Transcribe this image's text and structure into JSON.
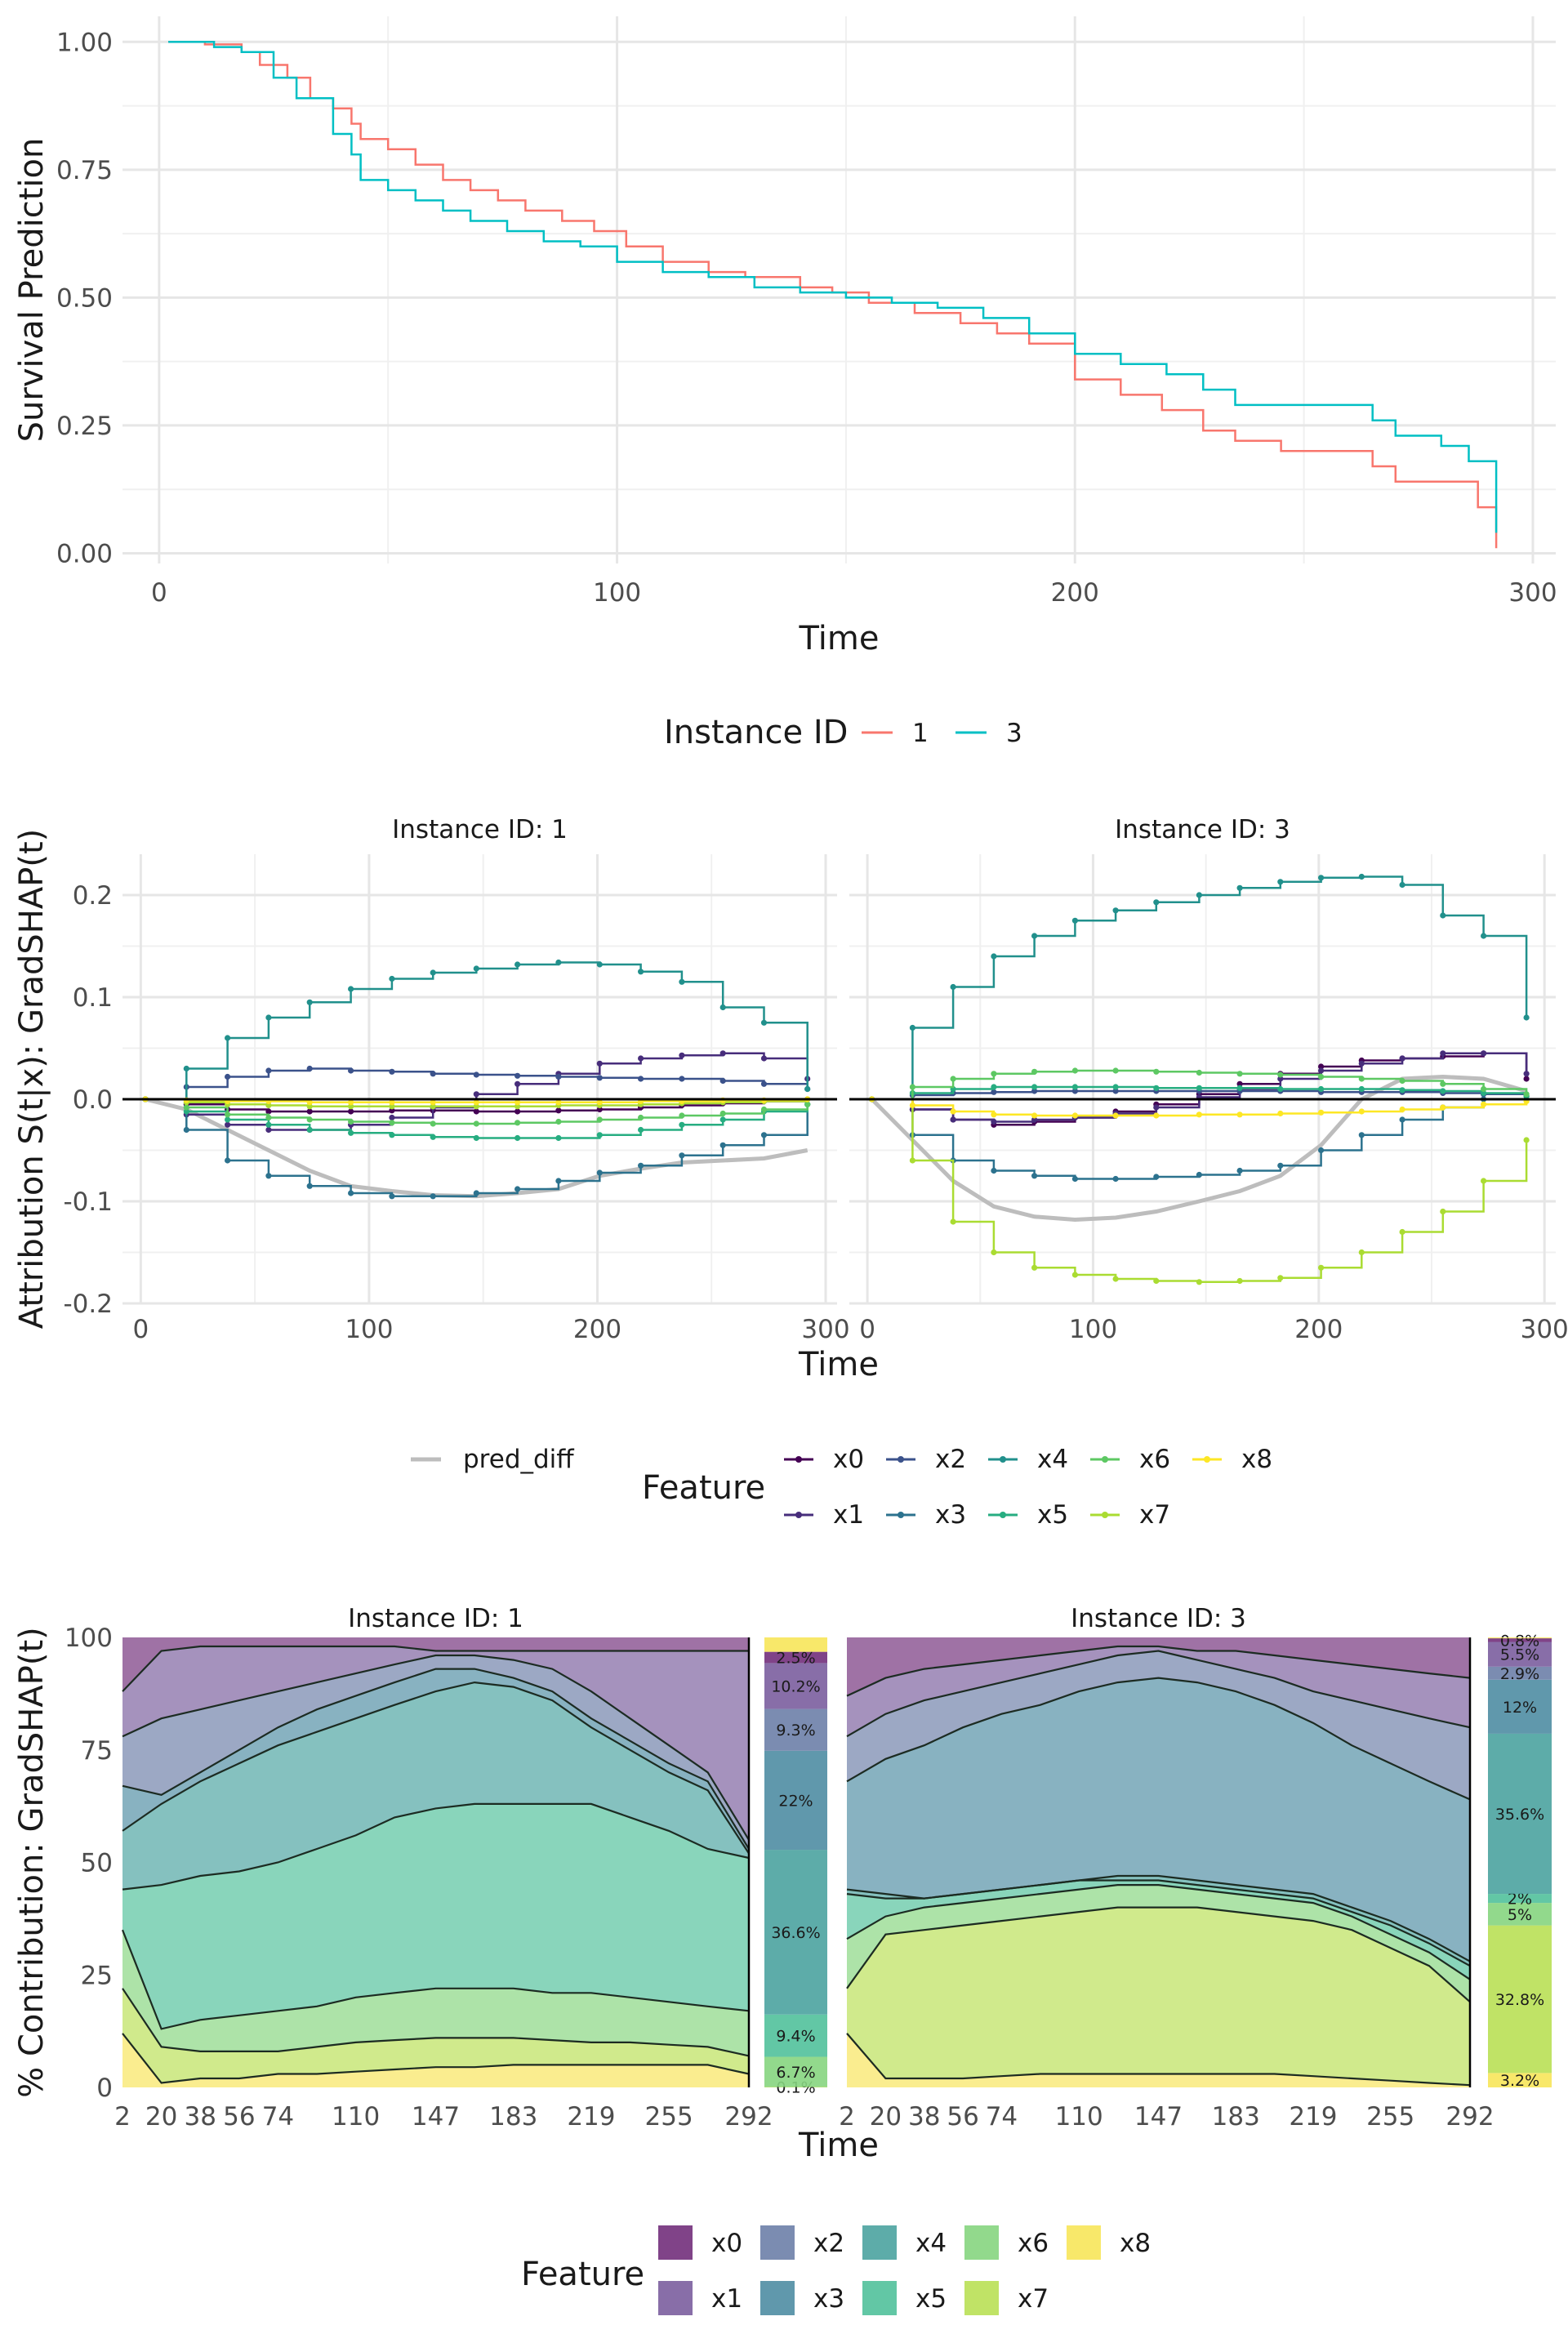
{
  "chart_data": [
    {
      "type": "line",
      "xlabel": "Time",
      "ylabel": "Survival Prediction",
      "xlim": [
        -8,
        305
      ],
      "ylim": [
        -0.02,
        1.05
      ],
      "xticks": [
        0,
        100,
        200,
        300
      ],
      "yticks": [
        0.0,
        0.25,
        0.5,
        0.75,
        1.0
      ],
      "ytick_labels": [
        "0.00",
        "0.25",
        "0.50",
        "0.75",
        "1.00"
      ],
      "grid": true,
      "legend": {
        "title": "Instance ID",
        "placement": "bottom"
      },
      "series": [
        {
          "name": "1",
          "color": "#F8766D",
          "x": [
            2,
            10,
            18,
            22,
            28,
            33,
            38,
            42,
            44,
            50,
            56,
            62,
            68,
            74,
            80,
            88,
            95,
            102,
            110,
            120,
            128,
            140,
            147,
            155,
            165,
            175,
            183,
            190,
            200,
            210,
            219,
            228,
            235,
            245,
            255,
            265,
            270,
            280,
            288,
            292
          ],
          "y": [
            1.0,
            0.995,
            0.98,
            0.955,
            0.93,
            0.89,
            0.87,
            0.84,
            0.81,
            0.79,
            0.76,
            0.73,
            0.71,
            0.69,
            0.67,
            0.65,
            0.63,
            0.6,
            0.57,
            0.55,
            0.54,
            0.52,
            0.51,
            0.49,
            0.47,
            0.45,
            0.43,
            0.41,
            0.34,
            0.31,
            0.28,
            0.24,
            0.22,
            0.2,
            0.2,
            0.17,
            0.14,
            0.14,
            0.09,
            0.01
          ]
        },
        {
          "name": "3",
          "color": "#00BFC4",
          "x": [
            2,
            12,
            18,
            25,
            30,
            38,
            42,
            44,
            50,
            56,
            62,
            68,
            76,
            84,
            92,
            100,
            110,
            120,
            130,
            140,
            150,
            160,
            170,
            180,
            190,
            200,
            210,
            220,
            228,
            235,
            245,
            255,
            265,
            270,
            280,
            286,
            292
          ],
          "y": [
            1.0,
            0.99,
            0.98,
            0.93,
            0.89,
            0.82,
            0.78,
            0.73,
            0.71,
            0.69,
            0.67,
            0.65,
            0.63,
            0.61,
            0.6,
            0.57,
            0.55,
            0.54,
            0.52,
            0.51,
            0.5,
            0.49,
            0.48,
            0.46,
            0.43,
            0.39,
            0.37,
            0.35,
            0.32,
            0.29,
            0.29,
            0.29,
            0.26,
            0.23,
            0.21,
            0.18,
            0.04
          ]
        }
      ]
    },
    {
      "type": "line",
      "xlabel": "Time",
      "ylabel": "Attribution S(t|x): GradSHAP(t)",
      "xlim": [
        -8,
        305
      ],
      "ylim": [
        -0.2,
        0.24
      ],
      "xticks": [
        0,
        100,
        200,
        300
      ],
      "yticks": [
        -0.2,
        -0.1,
        0.0,
        0.1,
        0.2
      ],
      "grid": true,
      "facets": [
        "Instance ID: 1",
        "Instance ID: 3"
      ],
      "legend": {
        "title": "Feature",
        "placement": "bottom"
      },
      "colors": {
        "pred_diff": "#BDBDBD",
        "x0": "#440154",
        "x1": "#472D7B",
        "x2": "#3B528B",
        "x3": "#2C728E",
        "x4": "#21908C",
        "x5": "#27AD81",
        "x6": "#5DC863",
        "x7": "#AADC32",
        "x8": "#FDE725"
      },
      "x": [
        2,
        20,
        38,
        56,
        74,
        92,
        110,
        128,
        147,
        165,
        183,
        201,
        219,
        237,
        255,
        273,
        292
      ],
      "instance_1": {
        "pred_diff": [
          0,
          -0.01,
          -0.03,
          -0.05,
          -0.07,
          -0.085,
          -0.09,
          -0.094,
          -0.095,
          -0.092,
          -0.088,
          -0.075,
          -0.068,
          -0.062,
          -0.06,
          -0.058,
          -0.05
        ],
        "x0": [
          0,
          -0.005,
          -0.01,
          -0.012,
          -0.012,
          -0.012,
          -0.011,
          -0.011,
          -0.012,
          -0.012,
          -0.011,
          -0.01,
          -0.008,
          -0.006,
          -0.004,
          -0.002,
          0
        ],
        "x1": [
          0,
          -0.015,
          -0.025,
          -0.03,
          -0.03,
          -0.025,
          -0.018,
          -0.008,
          0.005,
          0.015,
          0.025,
          0.035,
          0.04,
          0.043,
          0.045,
          0.04,
          0.02
        ],
        "x2": [
          0,
          0.012,
          0.022,
          0.028,
          0.03,
          0.028,
          0.027,
          0.025,
          0.024,
          0.023,
          0.022,
          0.021,
          0.02,
          0.02,
          0.018,
          0.015,
          0.01
        ],
        "x3": [
          0,
          -0.03,
          -0.06,
          -0.075,
          -0.085,
          -0.092,
          -0.095,
          -0.095,
          -0.092,
          -0.088,
          -0.08,
          -0.072,
          -0.065,
          -0.055,
          -0.045,
          -0.035,
          -0.005
        ],
        "x4": [
          0,
          0.03,
          0.06,
          0.08,
          0.095,
          0.108,
          0.118,
          0.124,
          0.128,
          0.132,
          0.134,
          0.132,
          0.125,
          0.115,
          0.09,
          0.075,
          0.01
        ],
        "x5": [
          0,
          -0.012,
          -0.02,
          -0.025,
          -0.03,
          -0.033,
          -0.035,
          -0.037,
          -0.038,
          -0.038,
          -0.038,
          -0.035,
          -0.03,
          -0.025,
          -0.02,
          -0.012,
          -0.005
        ],
        "x6": [
          0,
          -0.008,
          -0.015,
          -0.018,
          -0.02,
          -0.022,
          -0.023,
          -0.024,
          -0.024,
          -0.023,
          -0.022,
          -0.02,
          -0.018,
          -0.016,
          -0.014,
          -0.01,
          -0.005
        ],
        "x7": [
          0,
          -0.003,
          -0.005,
          -0.006,
          -0.007,
          -0.007,
          -0.007,
          -0.007,
          -0.007,
          -0.007,
          -0.006,
          -0.006,
          -0.005,
          -0.004,
          -0.003,
          -0.002,
          0
        ],
        "x8": [
          0,
          -0.001,
          -0.002,
          -0.002,
          -0.003,
          -0.003,
          -0.003,
          -0.003,
          -0.003,
          -0.003,
          -0.003,
          -0.003,
          -0.002,
          -0.002,
          -0.001,
          -0.001,
          0
        ]
      },
      "instance_3": {
        "pred_diff": [
          0,
          -0.04,
          -0.08,
          -0.105,
          -0.115,
          -0.118,
          -0.116,
          -0.11,
          -0.1,
          -0.09,
          -0.075,
          -0.045,
          0.0,
          0.02,
          0.022,
          0.02,
          0.008
        ],
        "x0": [
          0,
          -0.01,
          -0.02,
          -0.025,
          -0.022,
          -0.018,
          -0.012,
          -0.005,
          0.005,
          0.015,
          0.025,
          0.032,
          0.038,
          0.04,
          0.042,
          0.045,
          0.02
        ],
        "x1": [
          0,
          -0.01,
          -0.02,
          -0.022,
          -0.02,
          -0.018,
          -0.014,
          -0.008,
          0.002,
          0.01,
          0.02,
          0.028,
          0.035,
          0.04,
          0.045,
          0.045,
          0.025
        ],
        "x2": [
          0,
          0.004,
          0.006,
          0.007,
          0.008,
          0.008,
          0.008,
          0.008,
          0.008,
          0.008,
          0.008,
          0.007,
          0.007,
          0.007,
          0.006,
          0.005,
          0.003
        ],
        "x3": [
          0,
          -0.035,
          -0.06,
          -0.07,
          -0.075,
          -0.078,
          -0.078,
          -0.076,
          -0.074,
          -0.07,
          -0.065,
          -0.05,
          -0.035,
          -0.02,
          -0.008,
          0,
          0.003
        ],
        "x4": [
          0,
          0.07,
          0.11,
          0.14,
          0.16,
          0.175,
          0.185,
          0.193,
          0.2,
          0.207,
          0.213,
          0.217,
          0.218,
          0.21,
          0.18,
          0.16,
          0.08
        ],
        "x5": [
          0,
          0.006,
          0.01,
          0.012,
          0.012,
          0.012,
          0.012,
          0.011,
          0.011,
          0.011,
          0.01,
          0.01,
          0.01,
          0.009,
          0.008,
          0.006,
          0.003
        ],
        "x6": [
          0,
          0.012,
          0.02,
          0.025,
          0.027,
          0.028,
          0.028,
          0.027,
          0.026,
          0.025,
          0.024,
          0.022,
          0.02,
          0.018,
          0.015,
          0.01,
          0.005
        ],
        "x7": [
          0,
          -0.06,
          -0.12,
          -0.15,
          -0.165,
          -0.172,
          -0.176,
          -0.178,
          -0.179,
          -0.178,
          -0.175,
          -0.165,
          -0.15,
          -0.13,
          -0.11,
          -0.08,
          -0.04
        ],
        "x8": [
          0,
          -0.006,
          -0.012,
          -0.015,
          -0.016,
          -0.016,
          -0.016,
          -0.016,
          -0.015,
          -0.015,
          -0.014,
          -0.013,
          -0.012,
          -0.01,
          -0.008,
          -0.005,
          -0.002
        ]
      }
    },
    {
      "type": "area",
      "xlabel": "Time",
      "ylabel": "% Contribution: GradSHAP(t)",
      "ylim": [
        0,
        100
      ],
      "yticks": [
        0,
        25,
        50,
        75,
        100
      ],
      "xtick_labels": [
        "2",
        "20",
        "38",
        "56",
        "74",
        "110",
        "147",
        "183",
        "219",
        "255",
        "292"
      ],
      "facets": [
        "Instance ID: 1",
        "Instance ID: 3"
      ],
      "legend": {
        "title": "Feature",
        "placement": "bottom"
      },
      "colors": {
        "x0": "#722F7B",
        "x1": "#7B5E9E",
        "x2": "#6D7FA8",
        "x3": "#4F8DA3",
        "x4": "#4BA3A0",
        "x5": "#51C19B",
        "x6": "#86D57F",
        "x7": "#B9E055",
        "x8": "#F7E55A"
      },
      "x": [
        2,
        20,
        38,
        56,
        74,
        92,
        110,
        128,
        147,
        165,
        183,
        201,
        219,
        237,
        255,
        273,
        292
      ],
      "instance_1": {
        "cum_boundaries": {
          "x8_top": [
            12,
            1,
            2,
            2,
            3,
            3,
            3.5,
            4,
            4.5,
            4.5,
            5,
            5,
            5,
            5,
            5,
            5,
            3
          ],
          "x7_top": [
            22,
            9,
            8,
            8,
            8,
            9,
            10,
            10.5,
            11,
            11,
            11,
            10.5,
            10,
            10,
            9.5,
            9,
            7
          ],
          "x6_top": [
            35,
            13,
            15,
            16,
            17,
            18,
            20,
            21,
            22,
            22,
            22,
            21,
            21,
            20,
            19,
            18,
            17
          ],
          "x5_top": [
            44,
            45,
            47,
            48,
            50,
            53,
            56,
            60,
            62,
            63,
            63,
            63,
            63,
            60,
            57,
            53,
            51
          ],
          "x4_top": [
            57,
            63,
            68,
            72,
            76,
            79,
            82,
            85,
            88,
            90,
            89,
            86,
            80,
            75,
            70,
            66,
            52
          ],
          "x3_top": [
            67,
            65,
            70,
            75,
            80,
            84,
            87,
            90,
            93,
            93,
            91,
            88,
            82,
            77,
            72,
            68,
            53
          ],
          "x2_top": [
            78,
            82,
            84,
            86,
            88,
            90,
            92,
            94,
            96,
            96,
            95,
            93,
            88,
            82,
            76,
            70,
            55
          ],
          "x1_top": [
            88,
            97,
            98,
            98,
            98,
            98,
            98,
            98,
            97,
            97,
            97,
            97,
            97,
            97,
            97,
            97,
            97
          ]
        },
        "end_percentages": {
          "x0": "2.5%",
          "x1": "10.2%",
          "x2": "9.3%",
          "x3": "22%",
          "x4": "36.6%",
          "x5": "9.4%",
          "x6": "6.7%",
          "x7": "0.1%"
        }
      },
      "instance_3": {
        "cum_boundaries": {
          "x8_top": [
            12,
            2,
            2,
            2,
            2.5,
            3,
            3,
            3,
            3,
            3,
            3,
            3,
            2.5,
            2,
            1.5,
            1,
            0.5
          ],
          "x7_top": [
            22,
            34,
            35,
            36,
            37,
            38,
            39,
            40,
            40,
            40,
            39,
            38,
            37,
            35,
            31,
            27,
            19
          ],
          "x6_top": [
            33,
            38,
            40,
            41,
            42,
            43,
            44,
            45,
            45,
            44,
            43,
            42,
            41,
            38,
            34,
            30,
            24
          ],
          "x5_top": [
            43,
            42,
            42,
            43,
            44,
            45,
            46,
            46,
            46,
            45,
            44,
            43,
            42,
            39,
            36,
            32,
            27
          ],
          "x4_top": [
            44,
            43,
            42,
            43,
            44,
            45,
            46,
            47,
            47,
            46,
            45,
            44,
            43,
            40,
            37,
            33,
            28
          ],
          "x3_top": [
            68,
            73,
            76,
            80,
            83,
            85,
            88,
            90,
            91,
            90,
            88,
            85,
            81,
            76,
            72,
            68,
            64
          ],
          "x2_top": [
            78,
            83,
            86,
            88,
            90,
            92,
            94,
            96,
            97,
            95,
            93,
            91,
            88,
            86,
            84,
            82,
            80
          ],
          "x1_top": [
            87,
            91,
            93,
            94,
            95,
            96,
            97,
            98,
            98,
            97,
            97,
            96,
            95,
            94,
            93,
            92,
            91
          ]
        },
        "end_percentages": {
          "x0": "0.8%",
          "x1": "5.5%",
          "x2": "2.9%",
          "x3": "12%",
          "x4": "35.6%",
          "x5": "2%",
          "x6": "5%",
          "x7": "32.8%",
          "x8": "3.2%"
        }
      }
    }
  ],
  "legend1": {
    "title": "Instance ID",
    "items": [
      "1",
      "3"
    ]
  },
  "legend2": {
    "title": "Feature",
    "items": [
      "pred_diff",
      "x0",
      "x1",
      "x2",
      "x3",
      "x4",
      "x5",
      "x6",
      "x7",
      "x8"
    ]
  },
  "legend3": {
    "title": "Feature",
    "items": [
      "x0",
      "x1",
      "x2",
      "x3",
      "x4",
      "x5",
      "x6",
      "x7",
      "x8"
    ]
  }
}
